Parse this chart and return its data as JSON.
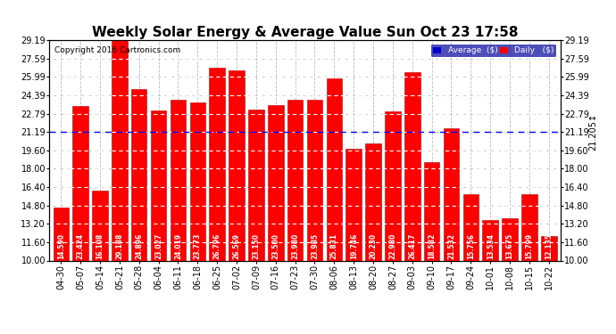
{
  "title": "Weekly Solar Energy & Average Value Sun Oct 23 17:58",
  "copyright": "Copyright 2016 Cartronics.com",
  "categories": [
    "04-30",
    "05-07",
    "05-14",
    "05-21",
    "05-28",
    "06-04",
    "06-11",
    "06-18",
    "06-25",
    "07-02",
    "07-09",
    "07-16",
    "07-23",
    "07-30",
    "08-06",
    "08-13",
    "08-20",
    "08-27",
    "09-03",
    "09-10",
    "09-17",
    "09-24",
    "10-01",
    "10-08",
    "10-15",
    "10-22"
  ],
  "values": [
    14.59,
    23.424,
    16.108,
    29.188,
    24.896,
    23.027,
    24.019,
    23.773,
    26.796,
    26.569,
    23.15,
    23.5,
    23.98,
    23.985,
    25.831,
    19.746,
    20.23,
    22.98,
    26.417,
    18.582,
    21.532,
    15.756,
    13.534,
    13.675,
    15.799,
    12.135
  ],
  "average_line": 21.205,
  "bar_color": "#ff0000",
  "bar_edge_color": "#bb0000",
  "average_line_color": "#0000ff",
  "ylim": [
    10.0,
    29.19
  ],
  "yticks": [
    10.0,
    11.6,
    13.2,
    14.8,
    16.4,
    18.0,
    19.6,
    21.19,
    22.79,
    24.39,
    25.99,
    27.59,
    29.19
  ],
  "grid_color": "#bbbbbb",
  "background_color": "#ffffff",
  "legend_avg_color": "#0000cc",
  "legend_daily_color": "#ff0000",
  "title_fontsize": 11,
  "label_fontsize": 5.5,
  "tick_fontsize": 7,
  "avg_annotation_fontsize": 7
}
